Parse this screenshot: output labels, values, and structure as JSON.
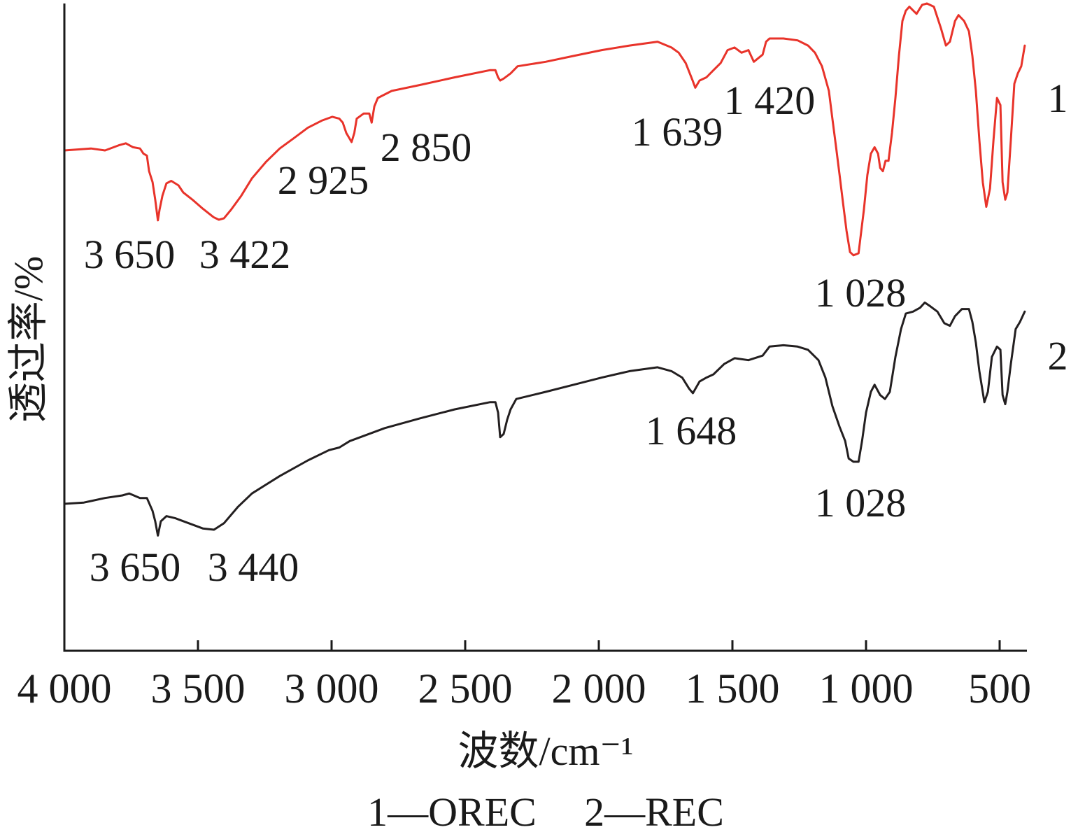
{
  "chart_data": {
    "type": "line",
    "xlabel": "波数/cm⁻¹",
    "ylabel": "透过率/%",
    "xlim": [
      4000,
      400
    ],
    "ylim": [
      0,
      100
    ],
    "grid": false,
    "legend_position": "bottom",
    "x_ticks": [
      {
        "value": 4000,
        "label": "4 000"
      },
      {
        "value": 3500,
        "label": "3 500"
      },
      {
        "value": 3000,
        "label": "3 000"
      },
      {
        "value": 2500,
        "label": "2 500"
      },
      {
        "value": 2000,
        "label": "2 000"
      },
      {
        "value": 1500,
        "label": "1 500"
      },
      {
        "value": 1000,
        "label": "1 000"
      },
      {
        "value": 500,
        "label": "500"
      }
    ],
    "legend": [
      {
        "text": "1—OREC"
      },
      {
        "text": "2—REC"
      }
    ],
    "series": [
      {
        "label": "1",
        "color": "#e8332a",
        "points": [
          [
            4000,
            77.3
          ],
          [
            3900,
            77.6
          ],
          [
            3848,
            77.3
          ],
          [
            3796,
            78.1
          ],
          [
            3770,
            78.4
          ],
          [
            3743,
            77.8
          ],
          [
            3717,
            77.6
          ],
          [
            3704,
            76.8
          ],
          [
            3691,
            76.5
          ],
          [
            3683,
            74.1
          ],
          [
            3670,
            72.4
          ],
          [
            3660,
            69.7
          ],
          [
            3650,
            66.5
          ],
          [
            3644,
            68.1
          ],
          [
            3633,
            70.3
          ],
          [
            3618,
            72.2
          ],
          [
            3600,
            72.6
          ],
          [
            3573,
            71.9
          ],
          [
            3555,
            70.8
          ],
          [
            3521,
            69.7
          ],
          [
            3482,
            68.3
          ],
          [
            3442,
            67.0
          ],
          [
            3422,
            66.6
          ],
          [
            3403,
            66.8
          ],
          [
            3377,
            68.1
          ],
          [
            3338,
            70.3
          ],
          [
            3298,
            73.0
          ],
          [
            3246,
            75.5
          ],
          [
            3194,
            77.6
          ],
          [
            3141,
            79.2
          ],
          [
            3089,
            80.8
          ],
          [
            3037,
            81.9
          ],
          [
            2997,
            82.5
          ],
          [
            2971,
            82.2
          ],
          [
            2958,
            81.6
          ],
          [
            2945,
            80.0
          ],
          [
            2925,
            78.6
          ],
          [
            2915,
            80.0
          ],
          [
            2906,
            82.2
          ],
          [
            2880,
            83.0
          ],
          [
            2859,
            83.0
          ],
          [
            2850,
            81.6
          ],
          [
            2840,
            84.1
          ],
          [
            2827,
            85.4
          ],
          [
            2775,
            86.5
          ],
          [
            2670,
            87.4
          ],
          [
            2539,
            88.6
          ],
          [
            2408,
            89.7
          ],
          [
            2387,
            89.7
          ],
          [
            2377,
            88.6
          ],
          [
            2369,
            88.1
          ],
          [
            2356,
            88.4
          ],
          [
            2330,
            89.2
          ],
          [
            2304,
            90.3
          ],
          [
            2199,
            91.0
          ],
          [
            2094,
            91.9
          ],
          [
            1989,
            92.8
          ],
          [
            1885,
            93.5
          ],
          [
            1780,
            94.1
          ],
          [
            1728,
            93.2
          ],
          [
            1701,
            92.4
          ],
          [
            1675,
            90.8
          ],
          [
            1649,
            88.1
          ],
          [
            1639,
            87.0
          ],
          [
            1623,
            88.1
          ],
          [
            1597,
            88.6
          ],
          [
            1571,
            89.7
          ],
          [
            1544,
            90.8
          ],
          [
            1518,
            92.8
          ],
          [
            1492,
            93.2
          ],
          [
            1466,
            92.4
          ],
          [
            1440,
            92.8
          ],
          [
            1420,
            91.0
          ],
          [
            1387,
            92.1
          ],
          [
            1374,
            94.1
          ],
          [
            1361,
            94.6
          ],
          [
            1309,
            94.6
          ],
          [
            1256,
            94.3
          ],
          [
            1217,
            93.5
          ],
          [
            1191,
            92.4
          ],
          [
            1165,
            90.3
          ],
          [
            1139,
            86.5
          ],
          [
            1126,
            82.2
          ],
          [
            1112,
            77.8
          ],
          [
            1099,
            73.5
          ],
          [
            1086,
            69.2
          ],
          [
            1073,
            64.9
          ],
          [
            1060,
            61.6
          ],
          [
            1047,
            61.1
          ],
          [
            1028,
            61.4
          ],
          [
            1021,
            63.8
          ],
          [
            1008,
            68.1
          ],
          [
            995,
            73.5
          ],
          [
            982,
            76.8
          ],
          [
            968,
            77.8
          ],
          [
            955,
            76.8
          ],
          [
            947,
            74.6
          ],
          [
            937,
            74.1
          ],
          [
            927,
            75.7
          ],
          [
            916,
            75.7
          ],
          [
            903,
            80.0
          ],
          [
            890,
            85.4
          ],
          [
            877,
            91.9
          ],
          [
            864,
            97.3
          ],
          [
            851,
            98.9
          ],
          [
            838,
            99.5
          ],
          [
            811,
            98.4
          ],
          [
            790,
            99.8
          ],
          [
            772,
            100
          ],
          [
            746,
            99.5
          ],
          [
            720,
            96.2
          ],
          [
            701,
            93.5
          ],
          [
            686,
            94.1
          ],
          [
            667,
            97.3
          ],
          [
            654,
            98.2
          ],
          [
            633,
            97.3
          ],
          [
            615,
            95.7
          ],
          [
            602,
            91.9
          ],
          [
            589,
            86.5
          ],
          [
            576,
            78.9
          ],
          [
            563,
            72.4
          ],
          [
            550,
            68.6
          ],
          [
            536,
            71.4
          ],
          [
            523,
            78.9
          ],
          [
            510,
            85.4
          ],
          [
            497,
            84.3
          ],
          [
            489,
            72.4
          ],
          [
            479,
            69.7
          ],
          [
            471,
            70.8
          ],
          [
            458,
            78.9
          ],
          [
            445,
            87.6
          ],
          [
            432,
            89.2
          ],
          [
            419,
            90.3
          ],
          [
            406,
            93.5
          ]
        ]
      },
      {
        "label": "2",
        "color": "#231f20",
        "points": [
          [
            4000,
            22.7
          ],
          [
            3927,
            22.9
          ],
          [
            3848,
            23.6
          ],
          [
            3783,
            24.0
          ],
          [
            3757,
            24.3
          ],
          [
            3717,
            23.6
          ],
          [
            3691,
            23.6
          ],
          [
            3670,
            21.6
          ],
          [
            3660,
            20.0
          ],
          [
            3650,
            17.8
          ],
          [
            3639,
            20.0
          ],
          [
            3618,
            20.8
          ],
          [
            3586,
            20.5
          ],
          [
            3534,
            19.7
          ],
          [
            3482,
            18.9
          ],
          [
            3440,
            18.7
          ],
          [
            3403,
            19.7
          ],
          [
            3351,
            22.2
          ],
          [
            3298,
            24.3
          ],
          [
            3194,
            27.0
          ],
          [
            3089,
            29.4
          ],
          [
            3010,
            31.0
          ],
          [
            2971,
            31.4
          ],
          [
            2932,
            32.4
          ],
          [
            2801,
            34.4
          ],
          [
            2670,
            35.9
          ],
          [
            2539,
            37.3
          ],
          [
            2408,
            38.4
          ],
          [
            2387,
            38.4
          ],
          [
            2377,
            36.8
          ],
          [
            2369,
            33.0
          ],
          [
            2356,
            33.5
          ],
          [
            2343,
            35.7
          ],
          [
            2330,
            37.3
          ],
          [
            2309,
            38.9
          ],
          [
            2199,
            40.0
          ],
          [
            2094,
            41.1
          ],
          [
            1989,
            42.2
          ],
          [
            1885,
            43.2
          ],
          [
            1780,
            43.8
          ],
          [
            1728,
            43.2
          ],
          [
            1688,
            42.2
          ],
          [
            1662,
            40.5
          ],
          [
            1648,
            39.8
          ],
          [
            1623,
            41.6
          ],
          [
            1597,
            42.2
          ],
          [
            1571,
            42.7
          ],
          [
            1531,
            44.3
          ],
          [
            1492,
            45.2
          ],
          [
            1440,
            44.9
          ],
          [
            1387,
            45.6
          ],
          [
            1361,
            47.0
          ],
          [
            1309,
            47.2
          ],
          [
            1256,
            47.0
          ],
          [
            1217,
            46.5
          ],
          [
            1178,
            44.9
          ],
          [
            1152,
            42.2
          ],
          [
            1126,
            37.8
          ],
          [
            1099,
            34.6
          ],
          [
            1078,
            32.4
          ],
          [
            1065,
            29.7
          ],
          [
            1047,
            29.2
          ],
          [
            1028,
            29.2
          ],
          [
            1015,
            32.4
          ],
          [
            1000,
            36.8
          ],
          [
            982,
            40.0
          ],
          [
            968,
            41.1
          ],
          [
            947,
            39.5
          ],
          [
            929,
            38.9
          ],
          [
            911,
            40.0
          ],
          [
            890,
            45.4
          ],
          [
            869,
            49.7
          ],
          [
            851,
            52.1
          ],
          [
            824,
            52.4
          ],
          [
            798,
            53.0
          ],
          [
            780,
            53.8
          ],
          [
            759,
            53.2
          ],
          [
            733,
            52.4
          ],
          [
            707,
            50.6
          ],
          [
            686,
            50.2
          ],
          [
            667,
            51.7
          ],
          [
            641,
            52.8
          ],
          [
            615,
            52.8
          ],
          [
            602,
            50.8
          ],
          [
            589,
            47.6
          ],
          [
            576,
            43.2
          ],
          [
            557,
            38.4
          ],
          [
            544,
            40.0
          ],
          [
            529,
            45.4
          ],
          [
            510,
            47.0
          ],
          [
            497,
            46.5
          ],
          [
            489,
            39.5
          ],
          [
            479,
            38.1
          ],
          [
            471,
            40.0
          ],
          [
            458,
            44.3
          ],
          [
            440,
            49.7
          ],
          [
            424,
            50.8
          ],
          [
            406,
            52.4
          ]
        ]
      }
    ],
    "annotations": [
      {
        "series": 0,
        "text": "3 650"
      },
      {
        "series": 0,
        "text": "3 422"
      },
      {
        "series": 0,
        "text": "2 925"
      },
      {
        "series": 0,
        "text": "2 850"
      },
      {
        "series": 0,
        "text": "1 639"
      },
      {
        "series": 0,
        "text": "1 420"
      },
      {
        "series": 0,
        "text": "1 028"
      },
      {
        "series": 1,
        "text": "3 650"
      },
      {
        "series": 1,
        "text": "3 440"
      },
      {
        "series": 1,
        "text": "1 648"
      },
      {
        "series": 1,
        "text": "1 028"
      }
    ]
  }
}
